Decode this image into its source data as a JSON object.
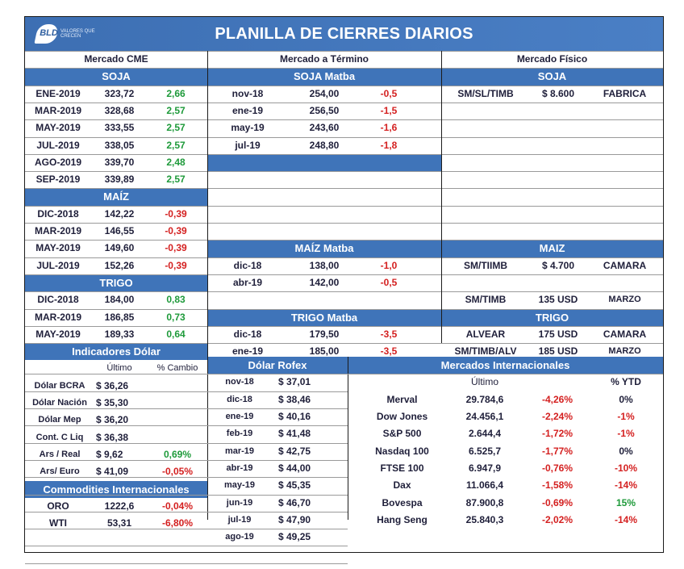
{
  "title": "PLANILLA DE CIERRES DIARIOS",
  "logo": {
    "mark": "BLD",
    "tagline": "VALORES QUE CRECEN"
  },
  "colors": {
    "header_blue": "#3f74b9",
    "positive": "#1e9a3a",
    "negative": "#d42020"
  },
  "sections": {
    "cme": "Mercado CME",
    "termino": "Mercado a Término",
    "fisico": "Mercado Físico"
  },
  "cme": {
    "soja_title": "SOJA",
    "soja": [
      [
        "ENE-2019",
        "323,72",
        "2,66"
      ],
      [
        "MAR-2019",
        "328,68",
        "2,57"
      ],
      [
        "MAY-2019",
        "333,55",
        "2,57"
      ],
      [
        "JUL-2019",
        "338,05",
        "2,57"
      ],
      [
        "AGO-2019",
        "339,70",
        "2,48"
      ],
      [
        "SEP-2019",
        "339,89",
        "2,57"
      ]
    ],
    "maiz_title": "MAÍZ",
    "maiz": [
      [
        "DIC-2018",
        "142,22",
        "-0,39"
      ],
      [
        "MAR-2019",
        "146,55",
        "-0,39"
      ],
      [
        "MAY-2019",
        "149,60",
        "-0,39"
      ],
      [
        "JUL-2019",
        "152,26",
        "-0,39"
      ]
    ],
    "trigo_title": "TRIGO",
    "trigo": [
      [
        "DIC-2018",
        "184,00",
        "0,83"
      ],
      [
        "MAR-2019",
        "186,85",
        "0,73"
      ],
      [
        "MAY-2019",
        "189,33",
        "0,64"
      ]
    ]
  },
  "termino": {
    "soja_title": "SOJA Matba",
    "soja": [
      [
        "nov-18",
        "254,00",
        "-0,5"
      ],
      [
        "ene-19",
        "256,50",
        "-1,5"
      ],
      [
        "may-19",
        "243,60",
        "-1,6"
      ],
      [
        "jul-19",
        "248,80",
        "-1,8"
      ]
    ],
    "maiz_title": "MAÍZ Matba",
    "maiz": [
      [
        "dic-18",
        "138,00",
        "-1,0"
      ],
      [
        "abr-19",
        "142,00",
        "-0,5"
      ]
    ],
    "trigo_title": "TRIGO Matba",
    "trigo": [
      [
        "dic-18",
        "179,50",
        "-3,5"
      ],
      [
        "ene-19",
        "185,00",
        "-3,5"
      ]
    ]
  },
  "fisico": {
    "soja_title": "SOJA",
    "soja": [
      [
        "SM/SL/TIMB",
        "$ 8.600",
        "FABRICA"
      ]
    ],
    "maiz_title": "MAIZ",
    "maiz": [
      [
        "SM/TIIMB",
        "$ 4.700",
        "CAMARA"
      ],
      [
        "SM/TIMB",
        "135 USD",
        "MARZO"
      ]
    ],
    "trigo_title": "TRIGO",
    "trigo": [
      [
        "ALVEAR",
        "175 USD",
        "CAMARA"
      ],
      [
        "SM/TIMB/ALV",
        "185 USD",
        "MARZO"
      ]
    ]
  },
  "dolar": {
    "title": "Indicadores Dólar",
    "col_last": "Último",
    "col_change": "% Cambio",
    "rows": [
      [
        "Dólar BCRA",
        "$ 36,26",
        ""
      ],
      [
        "Dólar Nación",
        "$ 35,30",
        ""
      ],
      [
        "Dólar Mep",
        "$ 36,20",
        ""
      ],
      [
        "Cont. C Liq",
        "$ 36,38",
        ""
      ],
      [
        "Ars / Real",
        "$ 9,62",
        "0,69%"
      ],
      [
        "Ars/ Euro",
        "$ 41,09",
        "-0,05%"
      ]
    ]
  },
  "commodities": {
    "title": "Commodities Internacionales",
    "rows": [
      [
        "ORO",
        "1222,6",
        "-0,04%"
      ],
      [
        "WTI",
        "53,31",
        "-6,80%"
      ]
    ]
  },
  "rofex": {
    "title": "Dólar Rofex",
    "rows": [
      [
        "nov-18",
        "$ 37,01"
      ],
      [
        "dic-18",
        "$ 38,46"
      ],
      [
        "ene-19",
        "$ 40,16"
      ],
      [
        "feb-19",
        "$ 41,48"
      ],
      [
        "mar-19",
        "$ 42,75"
      ],
      [
        "abr-19",
        "$ 44,00"
      ],
      [
        "may-19",
        "$ 45,35"
      ],
      [
        "jun-19",
        "$ 46,70"
      ],
      [
        "jul-19",
        "$ 47,90"
      ],
      [
        "ago-19",
        "$ 49,25"
      ]
    ]
  },
  "internacionales": {
    "title": "Mercados Internacionales",
    "col_last": "Último",
    "col_ytd": "% YTD",
    "rows": [
      [
        "Merval",
        "29.784,6",
        "-4,26%",
        "0%"
      ],
      [
        "Dow Jones",
        "24.456,1",
        "-2,24%",
        "-1%"
      ],
      [
        "S&P 500",
        "2.644,4",
        "-1,72%",
        "-1%"
      ],
      [
        "Nasdaq 100",
        "6.525,7",
        "-1,77%",
        "0%"
      ],
      [
        "FTSE 100",
        "6.947,9",
        "-0,76%",
        "-10%"
      ],
      [
        "Dax",
        "11.066,4",
        "-1,58%",
        "-14%"
      ],
      [
        "Bovespa",
        "87.900,8",
        "-0,69%",
        "15%"
      ],
      [
        "Hang Seng",
        "25.840,3",
        "-2,02%",
        "-14%"
      ]
    ]
  }
}
